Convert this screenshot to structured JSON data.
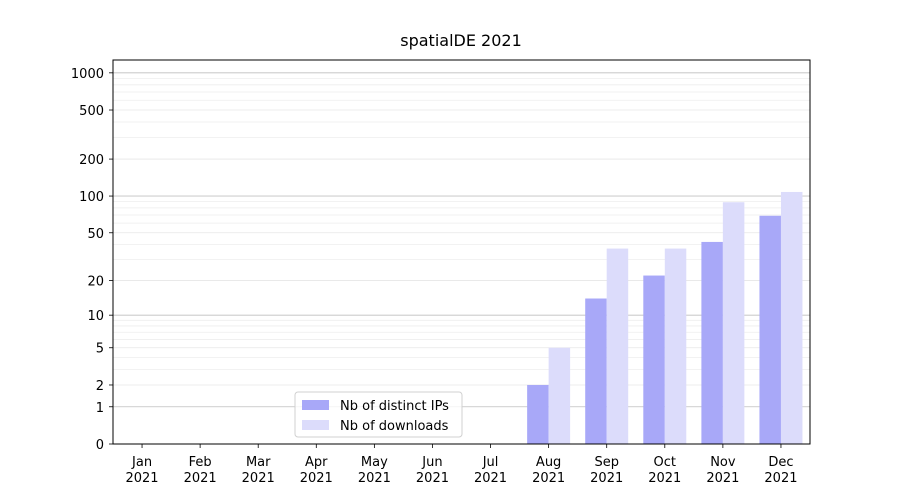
{
  "chart_data": {
    "type": "bar",
    "title": "spatialDE 2021",
    "categories": [
      "Jan 2021",
      "Feb 2021",
      "Mar 2021",
      "Apr 2021",
      "May 2021",
      "Jun 2021",
      "Jul 2021",
      "Aug 2021",
      "Sep 2021",
      "Oct 2021",
      "Nov 2021",
      "Dec 2021"
    ],
    "series": [
      {
        "name": "Nb of distinct IPs",
        "color": "#a8a8f8",
        "values": [
          0,
          0,
          0,
          0,
          0,
          0,
          0,
          2,
          14,
          22,
          42,
          69
        ]
      },
      {
        "name": "Nb of downloads",
        "color": "#dcdcfb",
        "values": [
          0,
          0,
          0,
          0,
          0,
          0,
          0,
          5,
          37,
          37,
          89,
          108
        ]
      }
    ],
    "yscale": "log1p",
    "ylim": [
      0,
      1270
    ],
    "yticks": [
      0,
      1,
      2,
      5,
      10,
      20,
      50,
      100,
      200,
      500,
      1000
    ],
    "yminorticks": [
      3,
      4,
      6,
      7,
      8,
      9,
      30,
      40,
      60,
      70,
      80,
      90,
      300,
      400,
      600,
      700,
      800,
      900
    ],
    "ymajorgrid": [
      1,
      10,
      100,
      1000
    ],
    "legend": "lower center"
  }
}
